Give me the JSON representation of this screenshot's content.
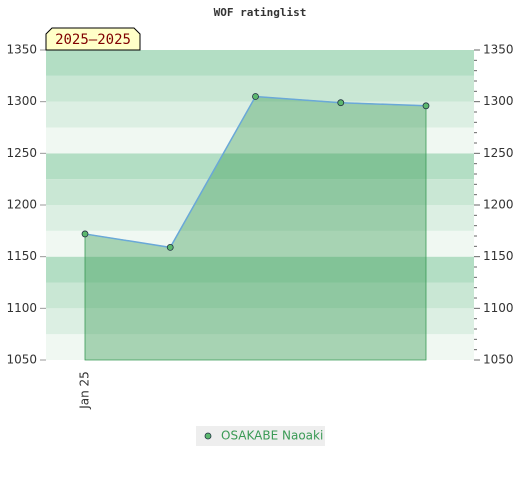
{
  "chart_data": {
    "type": "area",
    "title": "WOF ratinglist",
    "annotation": "2025–2025",
    "categories": [
      "Jan 25",
      null,
      null,
      null,
      null
    ],
    "series": [
      {
        "name": "OSAKABE Naoaki",
        "color": "#3a9a55",
        "values": [
          1172,
          1159,
          1305,
          1299,
          1296
        ]
      }
    ],
    "ylim": [
      1050,
      1350
    ],
    "yticks": [
      1050,
      1100,
      1150,
      1200,
      1250,
      1300,
      1350
    ],
    "y2lim": [
      1050,
      1350
    ],
    "y2ticks": [
      1050,
      1100,
      1150,
      1200,
      1250,
      1300,
      1350
    ]
  }
}
